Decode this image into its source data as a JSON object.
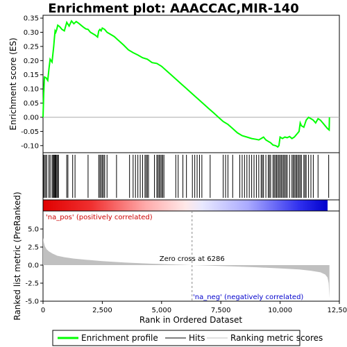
{
  "chart_data": {
    "type": "line",
    "title": "Enrichment plot: AAACCAC,MIR-140",
    "x_label": "Rank in Ordered Dataset",
    "x_range": [
      0,
      12500
    ],
    "x_ticks": [
      0,
      2500,
      5000,
      7500,
      10000,
      12500
    ],
    "x_tick_labels": [
      "0",
      "2,500",
      "5,000",
      "7,500",
      "10,000",
      "12,500"
    ],
    "es_panel": {
      "y_label": "Enrichment score (ES)",
      "y_range": [
        -0.125,
        0.36
      ],
      "y_ticks": [
        -0.1,
        -0.05,
        0.0,
        0.05,
        0.1,
        0.15,
        0.2,
        0.25,
        0.3,
        0.35
      ],
      "y_tick_labels": [
        "-0.10",
        "-0.05",
        "0.00",
        "0.05",
        "0.10",
        "0.15",
        "0.20",
        "0.25",
        "0.30",
        "0.35"
      ],
      "series": [
        {
          "name": "Enrichment profile",
          "color": "#00ff00",
          "x": [
            0,
            30,
            60,
            120,
            200,
            250,
            300,
            380,
            420,
            450,
            480,
            510,
            540,
            580,
            620,
            700,
            800,
            900,
            1000,
            1100,
            1200,
            1300,
            1400,
            1500,
            1600,
            1700,
            1800,
            1900,
            2000,
            2100,
            2200,
            2300,
            2350,
            2400,
            2450,
            2500,
            2600,
            2700,
            2800,
            3000,
            3200,
            3400,
            3600,
            3800,
            4000,
            4200,
            4400,
            4600,
            4800,
            5000,
            5200,
            5400,
            5600,
            5800,
            6000,
            6200,
            6400,
            6600,
            6800,
            7000,
            7200,
            7400,
            7600,
            7800,
            8000,
            8200,
            8400,
            8600,
            8800,
            9000,
            9100,
            9200,
            9300,
            9400,
            9500,
            9600,
            9700,
            9800,
            9850,
            9900,
            9950,
            10000,
            10100,
            10200,
            10300,
            10400,
            10500,
            10600,
            10700,
            10800,
            10850,
            10900,
            11000,
            11100,
            11200,
            11300,
            11400,
            11500,
            11600,
            11700,
            11800,
            11900,
            12000,
            12070,
            12080
          ],
          "y": [
            0.0,
            0.085,
            0.142,
            0.14,
            0.13,
            0.17,
            0.205,
            0.195,
            0.225,
            0.25,
            0.28,
            0.305,
            0.3,
            0.31,
            0.325,
            0.32,
            0.31,
            0.305,
            0.335,
            0.322,
            0.34,
            0.33,
            0.338,
            0.332,
            0.325,
            0.318,
            0.312,
            0.31,
            0.3,
            0.295,
            0.29,
            0.283,
            0.305,
            0.31,
            0.305,
            0.315,
            0.31,
            0.3,
            0.295,
            0.285,
            0.27,
            0.255,
            0.238,
            0.228,
            0.22,
            0.21,
            0.205,
            0.193,
            0.19,
            0.18,
            0.165,
            0.15,
            0.135,
            0.12,
            0.105,
            0.09,
            0.075,
            0.06,
            0.045,
            0.03,
            0.015,
            0.0,
            -0.015,
            -0.025,
            -0.04,
            -0.055,
            -0.065,
            -0.07,
            -0.075,
            -0.078,
            -0.08,
            -0.075,
            -0.07,
            -0.08,
            -0.085,
            -0.09,
            -0.098,
            -0.1,
            -0.102,
            -0.105,
            -0.1,
            -0.07,
            -0.075,
            -0.07,
            -0.072,
            -0.068,
            -0.075,
            -0.07,
            -0.06,
            -0.05,
            -0.02,
            -0.03,
            -0.035,
            -0.01,
            0.0,
            -0.005,
            -0.01,
            -0.02,
            -0.005,
            -0.01,
            -0.02,
            -0.03,
            -0.04,
            -0.045,
            0.0
          ]
        }
      ]
    },
    "hits": {
      "name": "Hits",
      "positions": [
        20,
        60,
        110,
        160,
        250,
        300,
        380,
        420,
        460,
        490,
        510,
        540,
        580,
        620,
        650,
        1000,
        1050,
        1250,
        1350,
        1900,
        2350,
        2400,
        2450,
        2500,
        2550,
        2600,
        2700,
        3100,
        3650,
        3800,
        3900,
        4000,
        4100,
        4200,
        4300,
        4350,
        4400,
        4450,
        4700,
        4800,
        4850,
        4900,
        4950,
        5000,
        5050,
        5100,
        5600,
        5700,
        5900,
        6050,
        6300,
        6400,
        6500,
        6600,
        6700,
        7050,
        7600,
        7700,
        7800,
        8000,
        8300,
        8400,
        8500,
        8600,
        8700,
        8800,
        8900,
        9000,
        9100,
        9200,
        9250,
        9300,
        9400,
        9500,
        9550,
        9600,
        9700,
        9750,
        9800,
        9850,
        9900,
        9950,
        10000,
        10050,
        10100,
        10150,
        10200,
        10250,
        10300,
        10400,
        10500,
        10550,
        10600,
        10650,
        10700,
        10750,
        10800,
        10850,
        10900,
        11000,
        11050,
        11100,
        11200,
        11300,
        11400,
        11600,
        12050
      ]
    },
    "ranking_panel": {
      "name": "Ranking metric scores",
      "y_label": "Ranked list metric (PreRanked)",
      "y_range": [
        -5.0,
        7.5
      ],
      "y_ticks": [
        -5.0,
        -2.5,
        0.0,
        2.5,
        5.0
      ],
      "y_tick_labels": [
        "-5.0",
        "-2.5",
        "0.0",
        "2.5",
        "5.0"
      ],
      "color": "#c0c0c0",
      "x": [
        0,
        30,
        80,
        150,
        250,
        400,
        600,
        900,
        1300,
        1800,
        2500,
        3500,
        4500,
        5500,
        6286,
        7000,
        8000,
        9000,
        10000,
        10800,
        11300,
        11700,
        11900,
        12000,
        12050,
        12080
      ],
      "y": [
        3.8,
        3.2,
        2.6,
        2.2,
        1.9,
        1.6,
        1.3,
        1.1,
        0.9,
        0.75,
        0.55,
        0.35,
        0.2,
        0.1,
        0.0,
        -0.08,
        -0.18,
        -0.3,
        -0.45,
        -0.6,
        -0.78,
        -1.0,
        -1.3,
        -1.7,
        -2.5,
        -4.6
      ]
    },
    "zero_cross": {
      "label": "Zero cross at 6286",
      "x": 6286
    },
    "pos_label": "'na_pos' (positively correlated)",
    "neg_label": "'na_neg' (negatively correlated)",
    "legend": {
      "placement": "bottom",
      "items": [
        {
          "label": "Enrichment profile",
          "color": "#00ff00"
        },
        {
          "label": "Hits",
          "color": "#000000"
        },
        {
          "label": "Ranking metric scores",
          "color": "#c0c0c0"
        }
      ]
    }
  }
}
